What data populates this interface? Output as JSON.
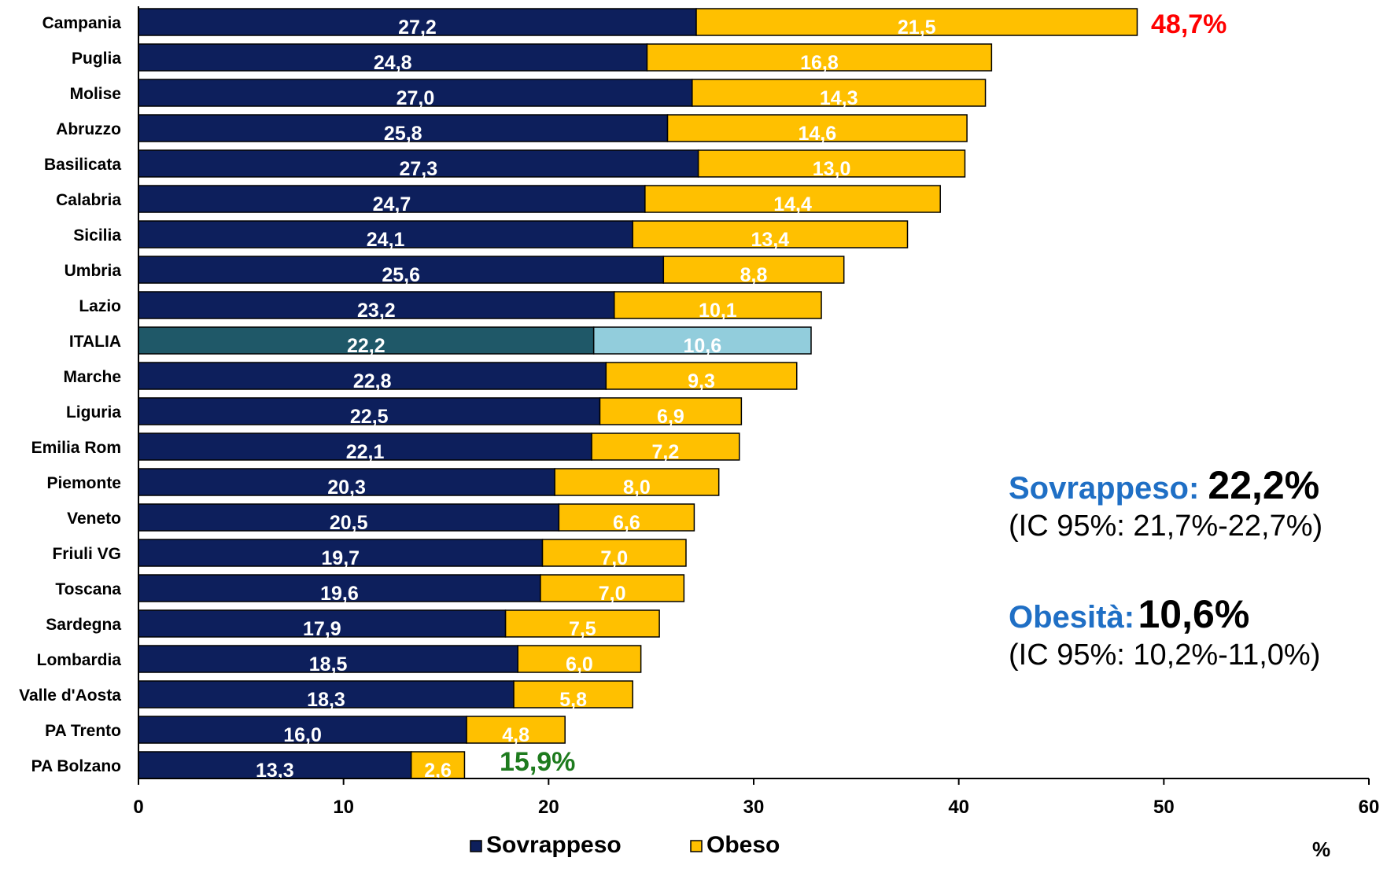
{
  "chart_data": {
    "type": "bar",
    "orientation": "horizontal",
    "stacked": true,
    "categories": [
      "Campania",
      "Puglia",
      "Molise",
      "Abruzzo",
      "Basilicata",
      "Calabria",
      "Sicilia",
      "Umbria",
      "Lazio",
      "ITALIA",
      "Marche",
      "Liguria",
      "Emilia Rom",
      "Piemonte",
      "Veneto",
      "Friuli VG",
      "Toscana",
      "Sardegna",
      "Lombardia",
      "Valle d'Aosta",
      "PA Trento",
      "PA Bolzano"
    ],
    "series": [
      {
        "name": "Sovrappeso",
        "color": "#0d1f5c",
        "highlight_color": "#1f5868",
        "values": [
          27.2,
          24.8,
          27.0,
          25.8,
          27.3,
          24.7,
          24.1,
          25.6,
          23.2,
          22.2,
          22.8,
          22.5,
          22.1,
          20.3,
          20.5,
          19.7,
          19.6,
          17.9,
          18.5,
          18.3,
          16.0,
          13.3
        ],
        "labels": [
          "27,2",
          "24,8",
          "27,0",
          "25,8",
          "27,3",
          "24,7",
          "24,1",
          "25,6",
          "23,2",
          "22,2",
          "22,8",
          "22,5",
          "22,1",
          "20,3",
          "20,5",
          "19,7",
          "19,6",
          "17,9",
          "18,5",
          "18,3",
          "16,0",
          "13,3"
        ]
      },
      {
        "name": "Obeso",
        "color": "#ffc000",
        "highlight_color": "#92cddc",
        "values": [
          21.5,
          16.8,
          14.3,
          14.6,
          13.0,
          14.4,
          13.4,
          8.8,
          10.1,
          10.6,
          9.3,
          6.9,
          7.2,
          8.0,
          6.6,
          7.0,
          7.0,
          7.5,
          6.0,
          5.8,
          4.8,
          2.6
        ],
        "labels": [
          "21,5",
          "16,8",
          "14,3",
          "14,6",
          "13,0",
          "14,4",
          "13,4",
          "8,8",
          "10,1",
          "10,6",
          "9,3",
          "6,9",
          "7,2",
          "8,0",
          "6,6",
          "7,0",
          "7,0",
          "7,5",
          "6,0",
          "5,8",
          "4,8",
          "2,6"
        ]
      }
    ],
    "highlight_category": "ITALIA",
    "xlim": [
      0,
      60
    ],
    "xticks": [
      0,
      10,
      20,
      30,
      40,
      50,
      60
    ],
    "xlabel": "%",
    "legend_position": "bottom",
    "annotations": {
      "max_total": "48,7%",
      "min_total": "15,9%"
    }
  },
  "legend": {
    "sovrappeso_label": "Sovrappeso",
    "obeso_label": "Obeso"
  },
  "summary": {
    "overweight": {
      "name": "Sovrappeso",
      "sep": ": ",
      "value": "22,2%",
      "ci": "(IC 95%: 21,7%-22,7%)"
    },
    "obesity": {
      "name": "Obesità:",
      "value": "10,6%",
      "ci": "(IC 95%: 10,2%-11,0%)"
    }
  },
  "axis_unit": "%"
}
